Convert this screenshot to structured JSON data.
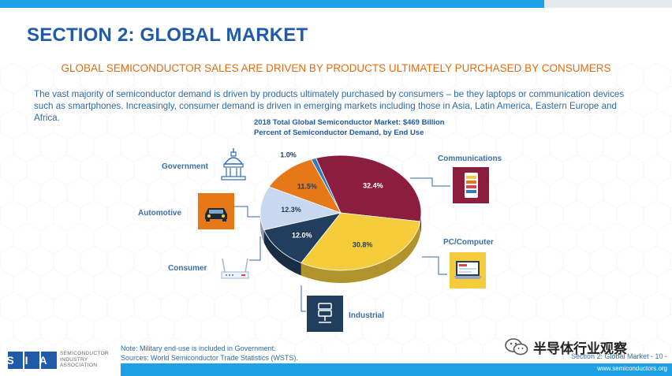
{
  "page": {
    "title": "SECTION 2: GLOBAL MARKET",
    "subtitle": "GLOBAL SEMICONDUCTOR SALES ARE DRIVEN BY PRODUCTS ULTIMATELY PURCHASED BY CONSUMERS",
    "body": "The vast majority of semiconductor demand is driven by products ultimately purchased by consumers – be they laptops or communication devices such as smartphones. Increasingly, consumer demand is driven in emerging markets including those in Asia, Latin America, Eastern Europe and Africa."
  },
  "chart_data": {
    "type": "pie",
    "title": "2018 Total Global Semiconductor Market: $469 Billion",
    "subtitle": "Percent of Semiconductor Demand, by End Use",
    "categories": [
      "Communications",
      "PC/Computer",
      "Industrial",
      "Consumer",
      "Automotive",
      "Government"
    ],
    "values": [
      32.4,
      30.8,
      12.0,
      12.3,
      11.5,
      1.0
    ],
    "value_labels": [
      "32.4%",
      "30.8%",
      "12.0%",
      "12.3%",
      "11.5%",
      "1.0%"
    ],
    "colors": [
      "#8b1e3f",
      "#f5cd3c",
      "#213e5e",
      "#c8d9ef",
      "#e67818",
      "#2f7bbd"
    ]
  },
  "categories": {
    "government": "Government",
    "automotive": "Automotive",
    "consumer": "Consumer",
    "communications": "Communications",
    "pc": "PC/Computer",
    "industrial": "Industrial"
  },
  "footer": {
    "note": "Note: Military end-use is included in Government.",
    "sources": "Sources: World Semiconductor Trade Statistics (WSTS).",
    "page": "Section 2: Global Market - 10 -",
    "url": "www.semiconductors.org",
    "logo": "SIA",
    "logo_lines": [
      "SEMICONDUCTOR",
      "INDUSTRY",
      "ASSOCIATION"
    ],
    "watermark": "半导体行业观察"
  }
}
